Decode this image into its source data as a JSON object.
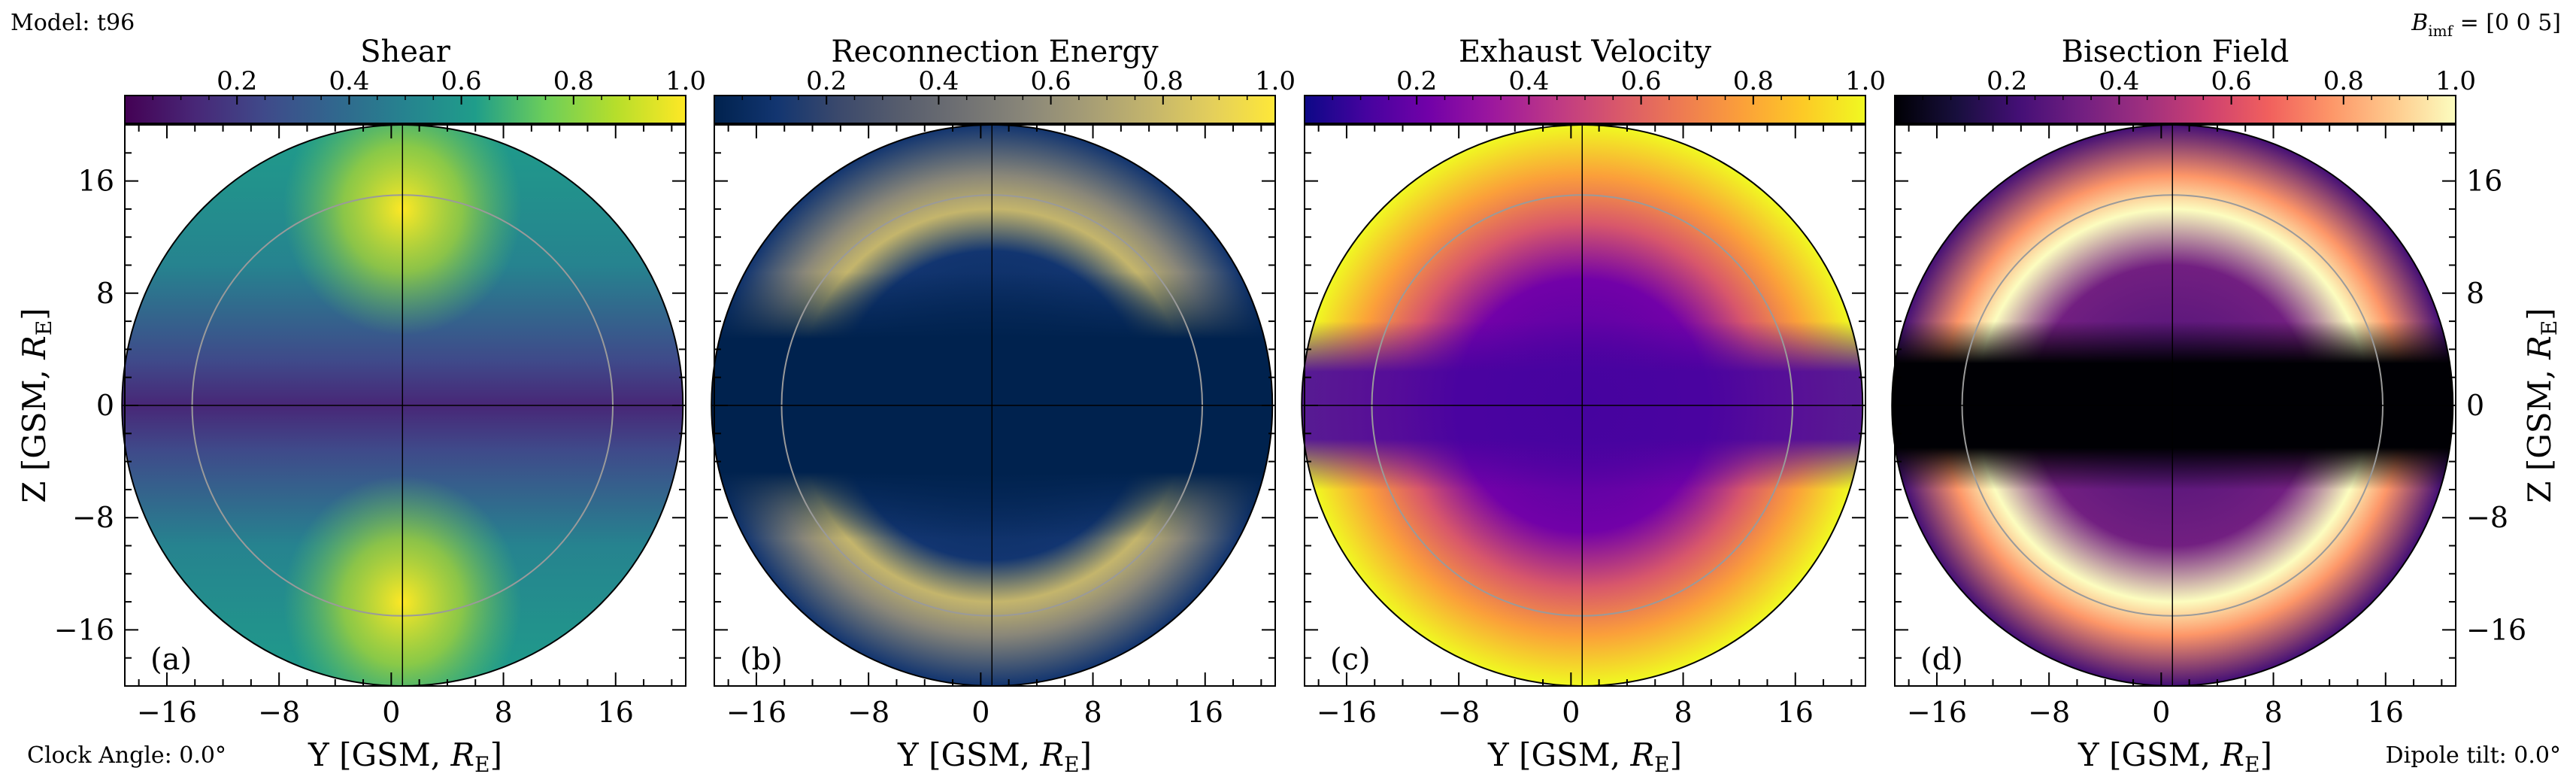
{
  "header": {
    "model_label": "Model: t96",
    "bimf_symbol": "B",
    "bimf_subscript": "imf",
    "bimf_value": " = [0 0 5]",
    "clock_angle_label": "Clock Angle: 0.0°",
    "dipole_tilt_label": "Dipole tilt: 0.0°"
  },
  "shared_axes": {
    "xlabel": "Y [GSM, R_E]",
    "ylabel": "Z [GSM, R_E]",
    "xlim": [
      -19,
      21
    ],
    "ylim": [
      -20,
      20
    ],
    "xticks": [
      -16,
      -8,
      0,
      8,
      16
    ],
    "yticks": [
      -16,
      -8,
      0,
      8,
      16
    ],
    "colorbar_range": [
      0,
      1
    ],
    "colorbar_ticks": [
      0.2,
      0.4,
      0.6,
      0.8,
      1.0
    ]
  },
  "chart_data": [
    {
      "type": "heatmap",
      "title": "Shear",
      "panel_label": "(a)",
      "colormap": "viridis",
      "extent_radius_RE": 20,
      "reference_circle_radius_RE": 15,
      "x_center_RE": 0.8,
      "peaks": "near (0.8, ±14), value ≈1.0; minimum ≈0.05 along Z≈0",
      "colorbar_ticks": [
        "0.2",
        "0.4",
        "0.6",
        "0.8",
        "1.0"
      ]
    },
    {
      "type": "heatmap",
      "title": "Reconnection Energy",
      "panel_label": "(b)",
      "colormap": "cividis",
      "extent_radius_RE": 20,
      "reference_circle_radius_RE": 15,
      "x_center_RE": 0.8,
      "peaks": "arcs near Z≈±14, value ≈0.8; ≈0.05 elsewhere",
      "colorbar_ticks": [
        "0.2",
        "0.4",
        "0.6",
        "0.8",
        "1.0"
      ]
    },
    {
      "type": "heatmap",
      "title": "Exhaust Velocity",
      "panel_label": "(c)",
      "colormap": "plasma",
      "extent_radius_RE": 20,
      "reference_circle_radius_RE": 15,
      "x_center_RE": 0.8,
      "peaks": "rises toward limb ≈0.9–1.0; minimum ≈0.15 in central band",
      "colorbar_ticks": [
        "0.2",
        "0.4",
        "0.6",
        "0.8",
        "1.0"
      ]
    },
    {
      "type": "heatmap",
      "title": "Bisection Field",
      "panel_label": "(d)",
      "colormap": "magma",
      "extent_radius_RE": 20,
      "reference_circle_radius_RE": 15,
      "x_center_RE": 0.8,
      "peaks": "arcs near Z≈±14, value ≈0.95; ≈0 along Z≈0",
      "colorbar_ticks": [
        "0.2",
        "0.4",
        "0.6",
        "0.8",
        "1.0"
      ]
    }
  ],
  "colormaps": {
    "viridis": [
      "#440154",
      "#482777",
      "#3f4a8a",
      "#31678e",
      "#26838f",
      "#1f9d8a",
      "#6cce5a",
      "#b6de2b",
      "#fee825"
    ],
    "cividis": [
      "#00224e",
      "#123570",
      "#3b496c",
      "#575d6d",
      "#707173",
      "#8a8779",
      "#a69d75",
      "#c4b56c",
      "#e4cf5b",
      "#fee838"
    ],
    "plasma": [
      "#0d0887",
      "#46039f",
      "#7201a8",
      "#9c179e",
      "#bd3786",
      "#d8576b",
      "#ed7953",
      "#fb9f3a",
      "#fdca26",
      "#f0f921"
    ],
    "magma": [
      "#000004",
      "#180f3d",
      "#440f76",
      "#721f81",
      "#9e2f7f",
      "#cd4071",
      "#f1605d",
      "#fd9668",
      "#feca8d",
      "#fcfdbf"
    ]
  }
}
